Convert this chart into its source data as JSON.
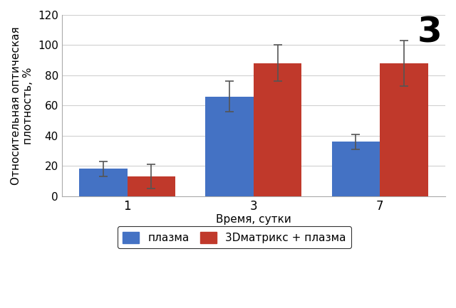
{
  "categories": [
    "1",
    "3",
    "7"
  ],
  "plasma_values": [
    18,
    66,
    36
  ],
  "matrix_values": [
    13,
    88,
    88
  ],
  "plasma_errors": [
    5,
    10,
    5
  ],
  "matrix_errors": [
    8,
    12,
    15
  ],
  "plasma_color": "#4472C4",
  "matrix_color": "#C0392B",
  "ylabel_line1": "Относительная оптическая",
  "ylabel_line2": "плотность, %",
  "xlabel": "Время, сутки",
  "legend_plasma": "плазма",
  "legend_matrix": "3Dматрикс + плазма",
  "ylim": [
    0,
    120
  ],
  "yticks": [
    0,
    20,
    40,
    60,
    80,
    100,
    120
  ],
  "bar_width": 0.38,
  "figure_number": "3",
  "background_color": "#ffffff",
  "grid_color": "#d0d0d0"
}
